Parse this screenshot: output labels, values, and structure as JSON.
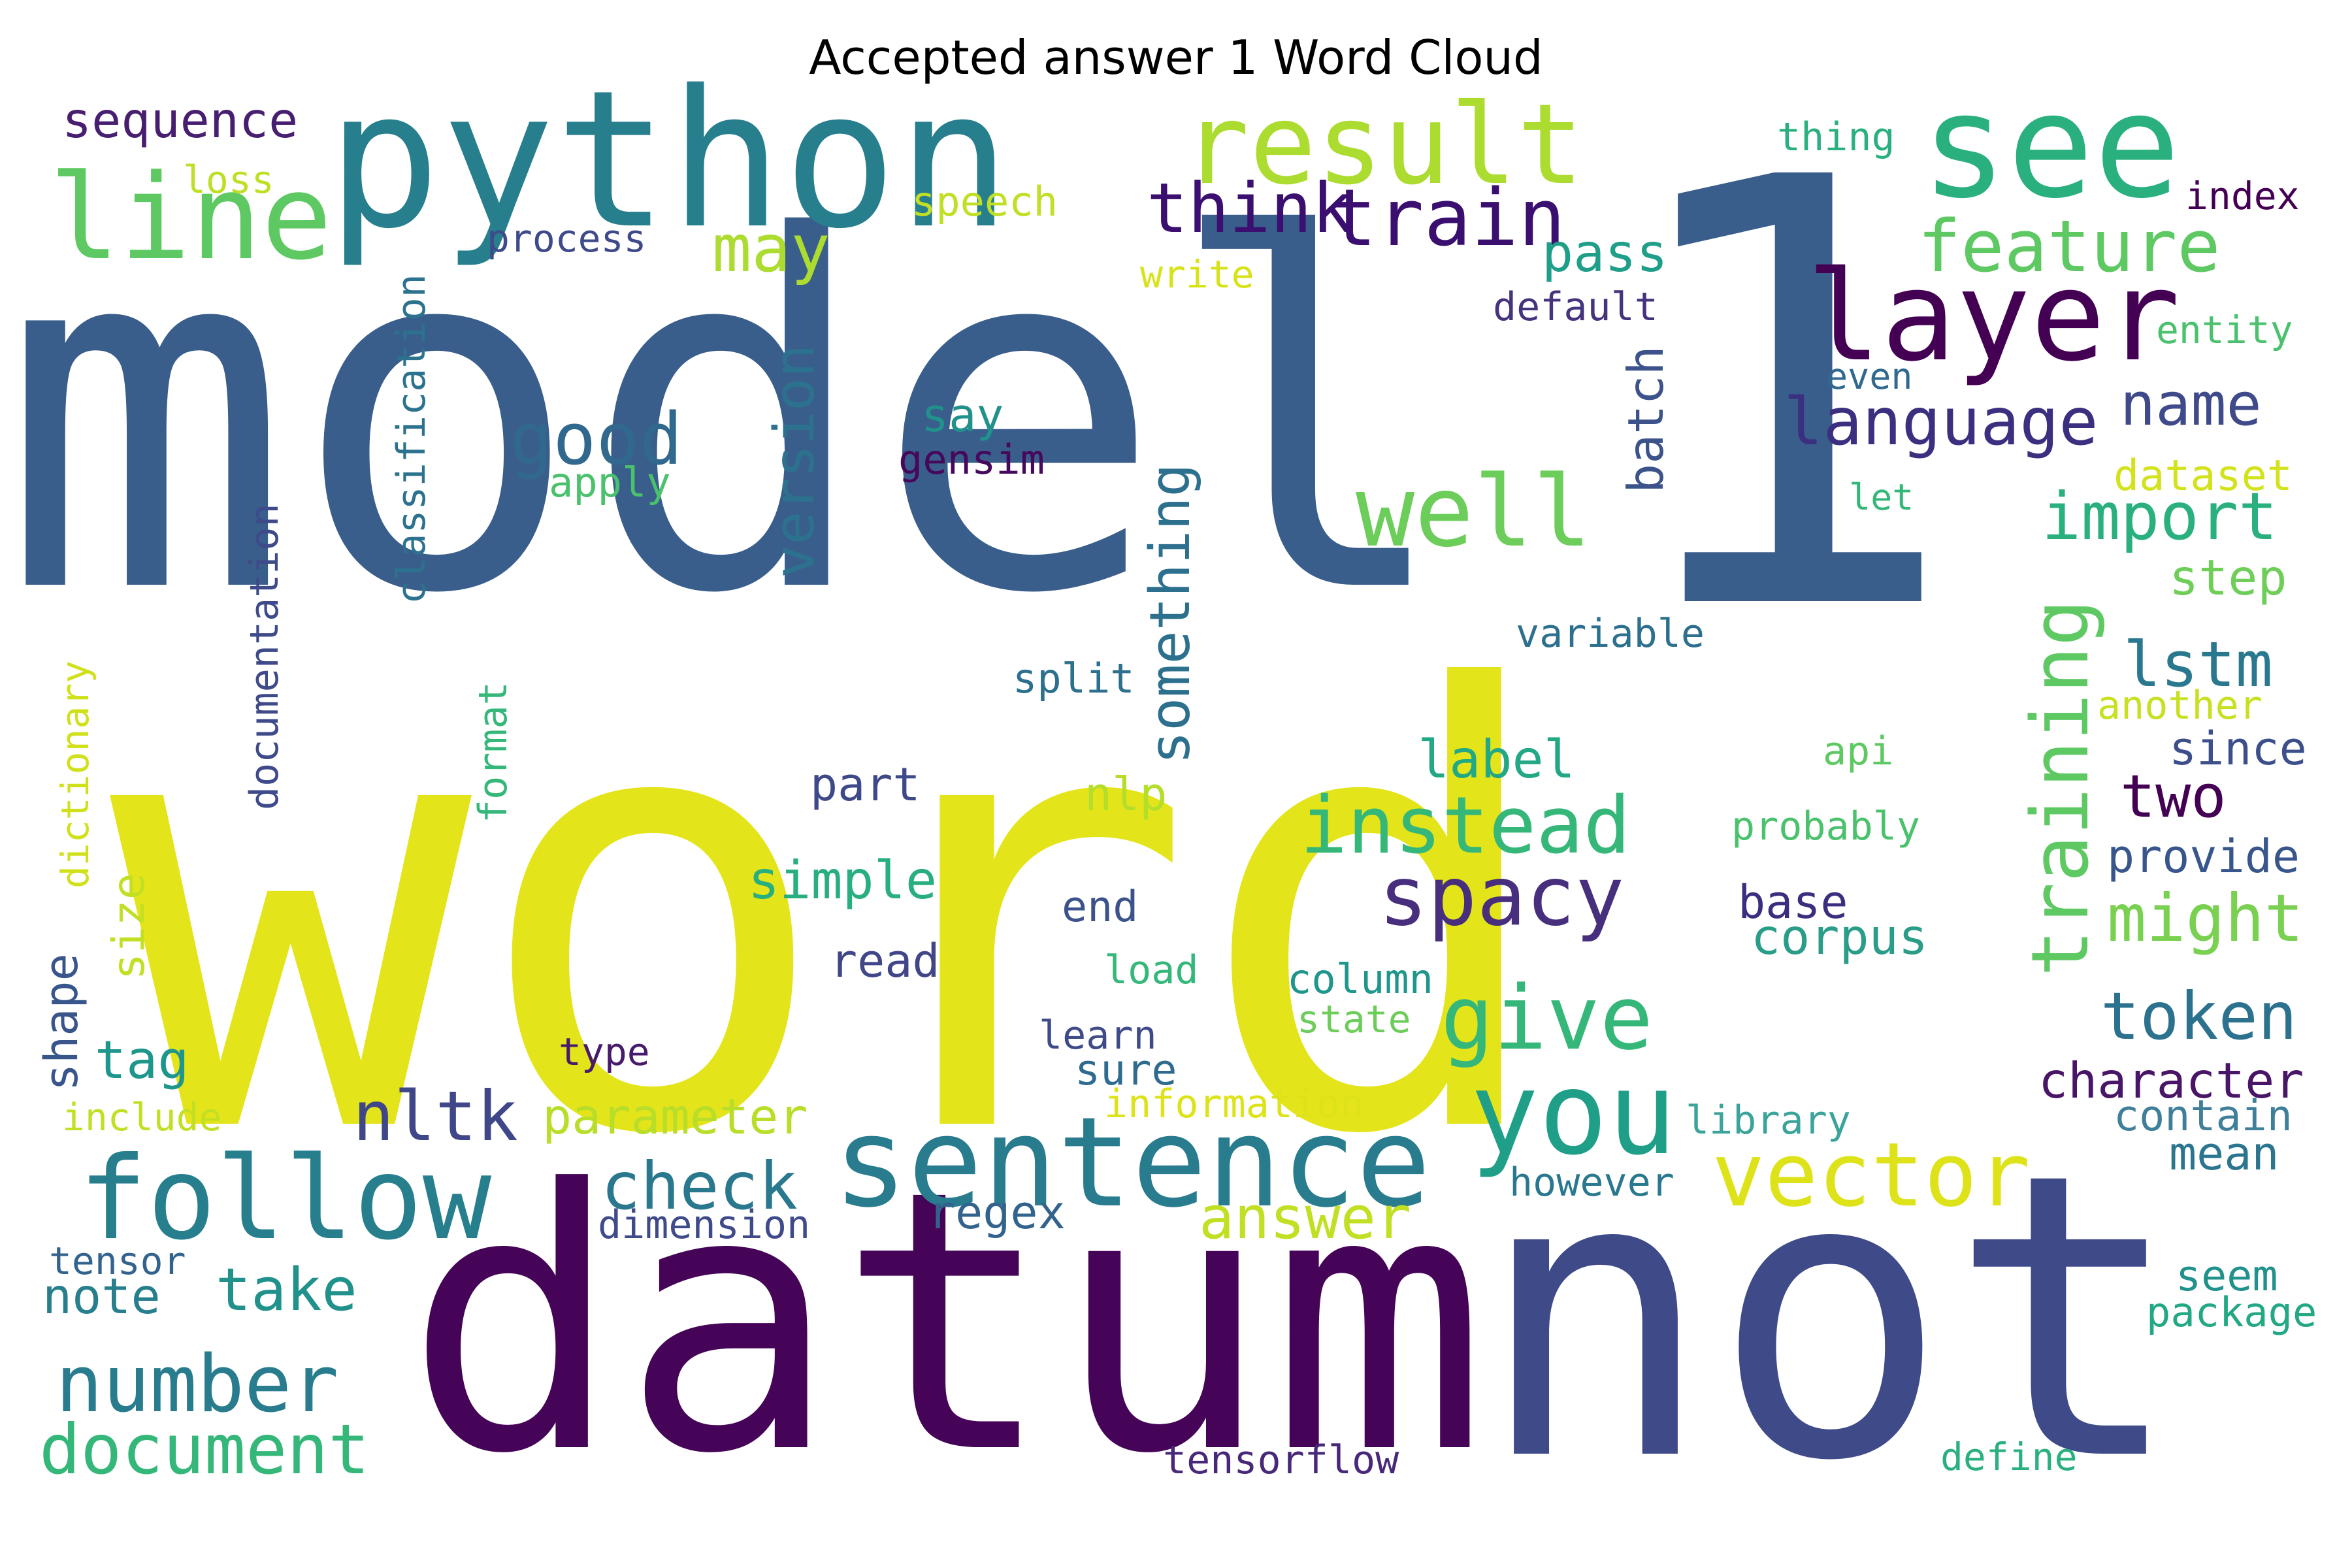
{
  "title": "Accepted answer 1 Word Cloud",
  "words": [
    {
      "text": "word",
      "color": "#e4e41a"
    },
    {
      "text": "model",
      "color": "#3a5e8c"
    },
    {
      "text": "datum",
      "color": "#450457"
    },
    {
      "text": "not",
      "color": "#3f4a89"
    },
    {
      "text": "1",
      "color": "#3a5e8c"
    },
    {
      "text": "python",
      "color": "#277f8e"
    },
    {
      "text": "see",
      "color": "#2ab07f"
    },
    {
      "text": "result",
      "color": "#addc30"
    },
    {
      "text": "line",
      "color": "#5ec962"
    },
    {
      "text": "layer",
      "color": "#440154"
    },
    {
      "text": "sentence",
      "color": "#287c8e"
    },
    {
      "text": "follow",
      "color": "#277f8e"
    },
    {
      "text": "you",
      "color": "#1f9f88"
    },
    {
      "text": "vector",
      "color": "#dde318"
    },
    {
      "text": "well",
      "color": "#6ccd5a"
    },
    {
      "text": "train",
      "color": "#3b0f70"
    },
    {
      "text": "think",
      "color": "#3b0f70"
    },
    {
      "text": "feature",
      "color": "#5ec962"
    },
    {
      "text": "spacy",
      "color": "#472f7d"
    },
    {
      "text": "instead",
      "color": "#35b779"
    },
    {
      "text": "give",
      "color": "#35b779"
    },
    {
      "text": "training",
      "color": "#5ec962"
    },
    {
      "text": "language",
      "color": "#3b2f80"
    },
    {
      "text": "good",
      "color": "#31688e"
    },
    {
      "text": "may",
      "color": "#addc30"
    },
    {
      "text": "number",
      "color": "#287c8e"
    },
    {
      "text": "document",
      "color": "#35b779"
    },
    {
      "text": "check",
      "color": "#2a788e"
    },
    {
      "text": "nltk",
      "color": "#3f4788"
    },
    {
      "text": "answer",
      "color": "#c2df23"
    },
    {
      "text": "take",
      "color": "#21918c"
    },
    {
      "text": "token",
      "color": "#2c728e"
    },
    {
      "text": "might",
      "color": "#7ad151"
    },
    {
      "text": "import",
      "color": "#2ab07f"
    },
    {
      "text": "name",
      "color": "#3e4a89"
    },
    {
      "text": "lstm",
      "color": "#2a788e"
    },
    {
      "text": "two",
      "color": "#440154"
    },
    {
      "text": "character",
      "color": "#481567"
    },
    {
      "text": "something",
      "color": "#2d708e"
    },
    {
      "text": "version",
      "color": "#2c728e"
    },
    {
      "text": "sequence",
      "color": "#481f70"
    },
    {
      "text": "pass",
      "color": "#1f9e89"
    },
    {
      "text": "batch",
      "color": "#3b528b"
    },
    {
      "text": "parameter",
      "color": "#b8de29"
    },
    {
      "text": "label",
      "color": "#22a884"
    },
    {
      "text": "simple",
      "color": "#29af7f"
    },
    {
      "text": "note",
      "color": "#277f8e"
    },
    {
      "text": "tag",
      "color": "#1f968b"
    },
    {
      "text": "regex",
      "color": "#33638d"
    },
    {
      "text": "read",
      "color": "#404688"
    },
    {
      "text": "part",
      "color": "#3e4989"
    },
    {
      "text": "base",
      "color": "#3a2f7f"
    },
    {
      "text": "corpus",
      "color": "#2a9d88"
    },
    {
      "text": "step",
      "color": "#6ece58"
    },
    {
      "text": "since",
      "color": "#3c4f8a"
    },
    {
      "text": "provide",
      "color": "#39568c"
    },
    {
      "text": "mean",
      "color": "#2b758e"
    },
    {
      "text": "contain",
      "color": "#3f7f9a"
    },
    {
      "text": "seem",
      "color": "#21918c"
    },
    {
      "text": "package",
      "color": "#22a884"
    },
    {
      "text": "dataset",
      "color": "#d2e21b"
    },
    {
      "text": "entity",
      "color": "#4ac16d"
    },
    {
      "text": "index",
      "color": "#440154"
    },
    {
      "text": "thing",
      "color": "#2ab07f"
    },
    {
      "text": "default",
      "color": "#46337e"
    },
    {
      "text": "even",
      "color": "#31688e"
    },
    {
      "text": "let",
      "color": "#35b779"
    },
    {
      "text": "variable",
      "color": "#2d708e"
    },
    {
      "text": "another",
      "color": "#c8e020"
    },
    {
      "text": "api",
      "color": "#5ec962"
    },
    {
      "text": "probably",
      "color": "#4ac16d"
    },
    {
      "text": "library",
      "color": "#3aa39a"
    },
    {
      "text": "however",
      "color": "#2a788e"
    },
    {
      "text": "column",
      "color": "#1f968b"
    },
    {
      "text": "state",
      "color": "#6ccd5a"
    },
    {
      "text": "information",
      "color": "#dde318"
    },
    {
      "text": "sure",
      "color": "#2f6b8e"
    },
    {
      "text": "learn",
      "color": "#3f4a89"
    },
    {
      "text": "end",
      "color": "#3b528b"
    },
    {
      "text": "load",
      "color": "#35b779"
    },
    {
      "text": "nlp",
      "color": "#b5de2b"
    },
    {
      "text": "split",
      "color": "#2d708e"
    },
    {
      "text": "say",
      "color": "#21918c"
    },
    {
      "text": "gensim",
      "color": "#46085c"
    },
    {
      "text": "apply",
      "color": "#4ac16d"
    },
    {
      "text": "write",
      "color": "#d8e219"
    },
    {
      "text": "speech",
      "color": "#c0df25"
    },
    {
      "text": "process",
      "color": "#3e4a89"
    },
    {
      "text": "loss",
      "color": "#bddf26"
    },
    {
      "text": "classification",
      "color": "#2c728e"
    },
    {
      "text": "documentation",
      "color": "#3e4a89"
    },
    {
      "text": "format",
      "color": "#35b779"
    },
    {
      "text": "dictionary",
      "color": "#d0e11c"
    },
    {
      "text": "size",
      "color": "#c2df23"
    },
    {
      "text": "shape",
      "color": "#39568c"
    },
    {
      "text": "include",
      "color": "#c2df23"
    },
    {
      "text": "tensor",
      "color": "#33638d"
    },
    {
      "text": "type",
      "color": "#481a6c"
    },
    {
      "text": "dimension",
      "color": "#3e4a89"
    },
    {
      "text": "tensorflow",
      "color": "#482878"
    },
    {
      "text": "define",
      "color": "#2ab07f"
    }
  ]
}
